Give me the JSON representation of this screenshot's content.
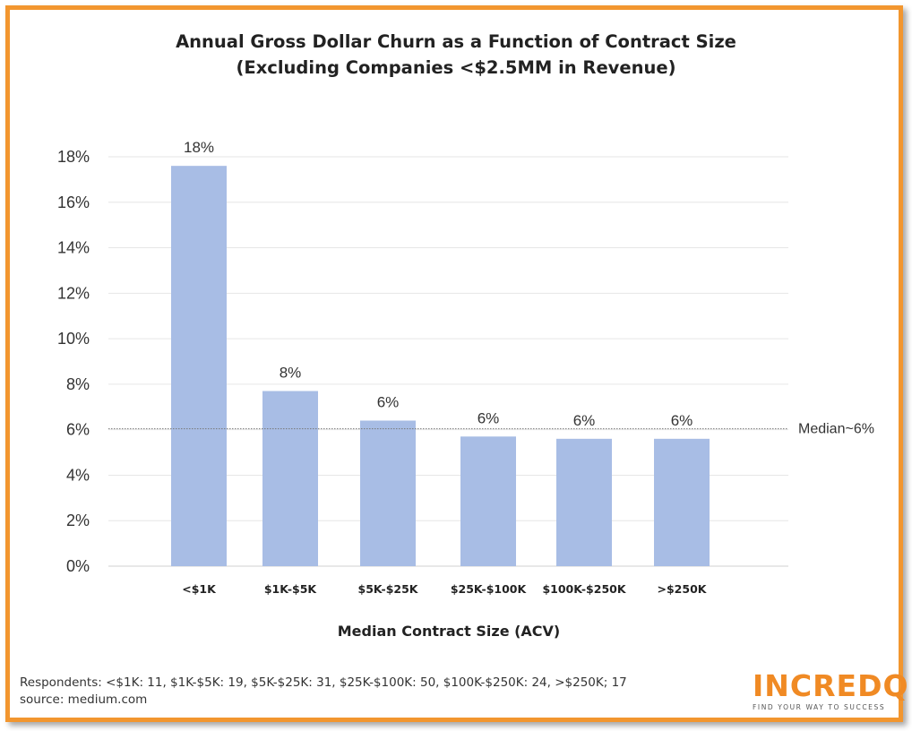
{
  "chart_data": {
    "type": "bar",
    "title": "Annual Gross Dollar Churn as a Function of Contract Size",
    "subtitle": "(Excluding Companies <$2.5MM in Revenue)",
    "xlabel": "Median Contract Size (ACV)",
    "ylabel": "",
    "categories": [
      "<$1K",
      "$1K-$5K",
      "$5K-$25K",
      "$25K-$100K",
      "$100K-$250K",
      ">$250K"
    ],
    "values": [
      17.6,
      7.7,
      6.4,
      5.7,
      5.6,
      5.6
    ],
    "data_labels": [
      "18%",
      "8%",
      "6%",
      "6%",
      "6%",
      "6%"
    ],
    "ylim": [
      0,
      18
    ],
    "y_ticks": [
      0,
      2,
      4,
      6,
      8,
      10,
      12,
      14,
      16,
      18
    ],
    "y_tick_labels": [
      "0%",
      "2%",
      "4%",
      "6%",
      "8%",
      "10%",
      "12%",
      "14%",
      "16%",
      "18%"
    ],
    "grid": true,
    "reference_line": {
      "value": 6,
      "label": "Median~6%"
    },
    "colors": {
      "bar": "#a8bde5",
      "grid": "#e6e6e6",
      "reference_line": "#777777"
    }
  },
  "footnote": {
    "respondents": "Respondents: <$1K: 11, $1K-$5K: 19, $5K-$25K: 31, $25K-$100K: 50, $100K-$250K: 24, >$250K; 17",
    "source": "source: medium.com"
  },
  "logo": {
    "word": "INCREDQ",
    "tagline": "FIND YOUR WAY TO SUCCESS",
    "color": "#f08a24"
  },
  "frame": {
    "border_color": "#f2962f"
  }
}
